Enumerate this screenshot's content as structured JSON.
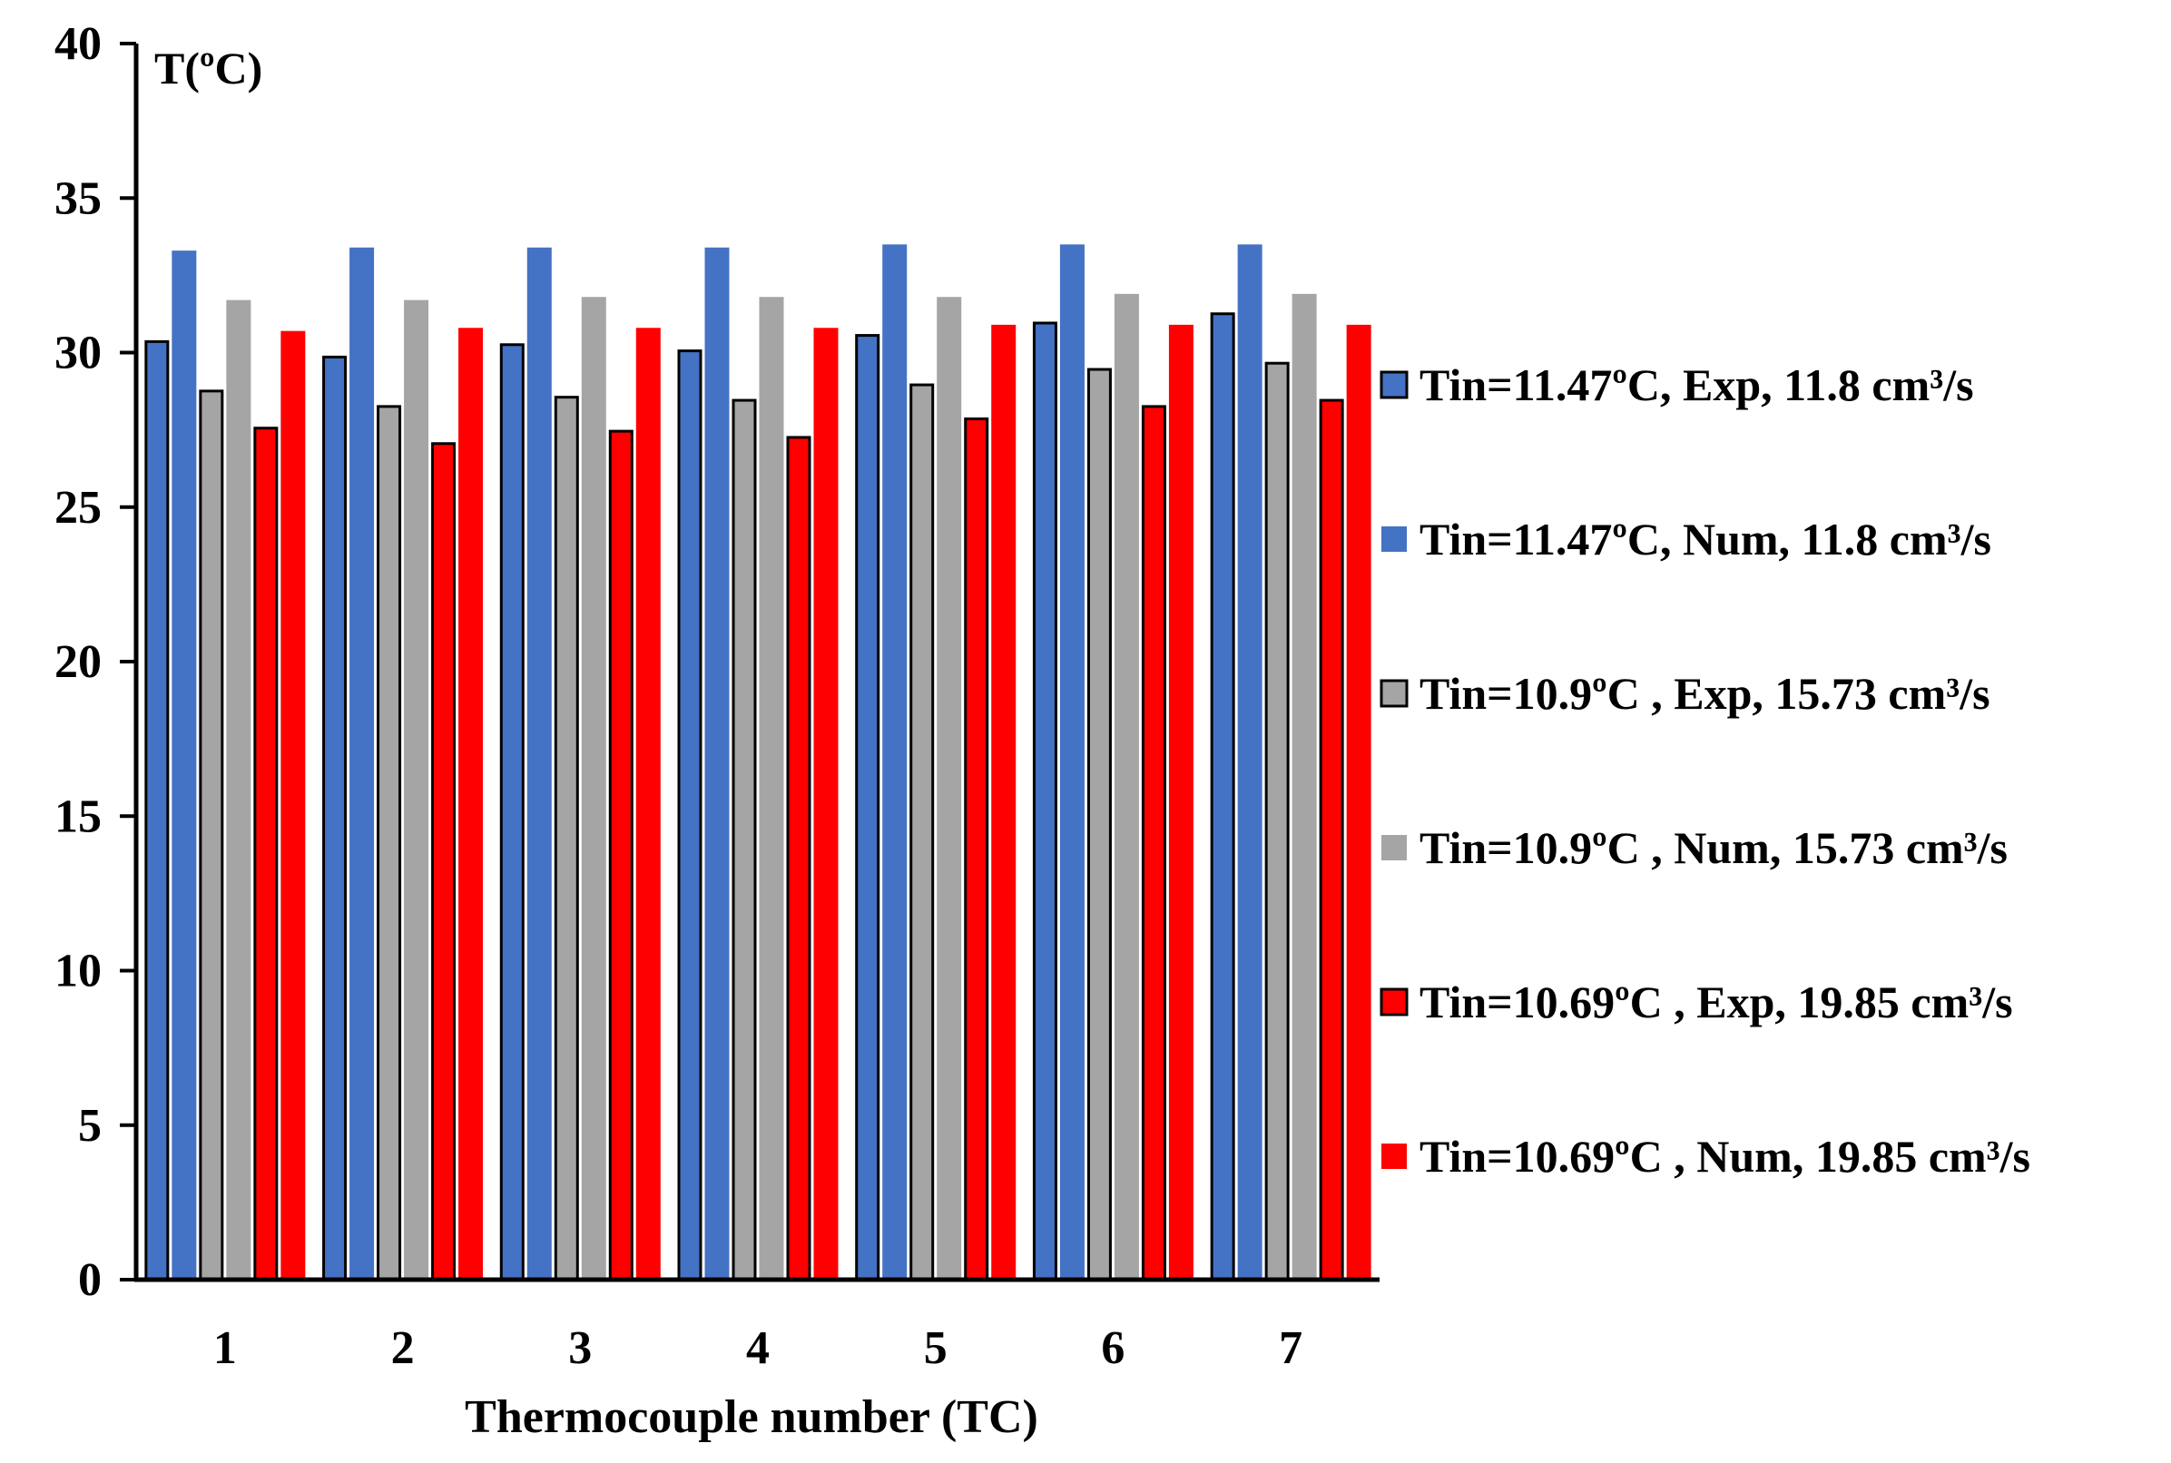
{
  "chart_data": {
    "type": "bar",
    "title": "",
    "ylabel": "T(ºC)",
    "xlabel": "Thermocouple number (TC)",
    "ylim": [
      0,
      40
    ],
    "yticks": [
      0,
      5,
      10,
      15,
      20,
      25,
      30,
      35,
      40
    ],
    "grid": false,
    "legend_position": "right",
    "categories": [
      "1",
      "2",
      "3",
      "4",
      "5",
      "6",
      "7"
    ],
    "series": [
      {
        "name": "Tin=11.47ºC, Exp, 11.8 cm³/s",
        "color": "#4472c4",
        "outlined": true,
        "values": [
          30.4,
          29.9,
          30.3,
          30.1,
          30.6,
          31.0,
          31.3
        ]
      },
      {
        "name": "Tin=11.47ºC, Num, 11.8 cm³/s",
        "color": "#4472c4",
        "outlined": false,
        "values": [
          33.3,
          33.4,
          33.4,
          33.4,
          33.5,
          33.5,
          33.5
        ]
      },
      {
        "name": "Tin=10.9ºC , Exp, 15.73 cm³/s",
        "color": "#a5a5a5",
        "outlined": true,
        "values": [
          28.8,
          28.3,
          28.6,
          28.5,
          29.0,
          29.5,
          29.7
        ]
      },
      {
        "name": "Tin=10.9ºC , Num, 15.73 cm³/s",
        "color": "#a5a5a5",
        "outlined": false,
        "values": [
          31.7,
          31.7,
          31.8,
          31.8,
          31.8,
          31.9,
          31.9
        ]
      },
      {
        "name": "Tin=10.69ºC , Exp, 19.85 cm³/s",
        "color": "#ff0000",
        "outlined": true,
        "values": [
          27.6,
          27.1,
          27.5,
          27.3,
          27.9,
          28.3,
          28.5
        ]
      },
      {
        "name": "Tin=10.69ºC , Num, 19.85 cm³/s",
        "color": "#ff0000",
        "outlined": false,
        "values": [
          30.7,
          30.8,
          30.8,
          30.8,
          30.9,
          30.9,
          30.9
        ]
      }
    ]
  }
}
